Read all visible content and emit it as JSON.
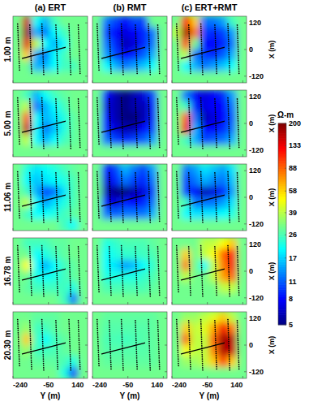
{
  "chart_data": {
    "type": "heatmap",
    "column_titles": [
      "(a) ERT",
      "(b) RMT",
      "(c) ERT+RMT"
    ],
    "row_labels": [
      "1.00 m",
      "5.00 m",
      "11.06 m",
      "16.78 m",
      "20.30 m"
    ],
    "x_label": "Y (m)",
    "y_label": "X (m)",
    "xlim": [
      -240,
      160
    ],
    "xticks": [
      -240,
      -50,
      140
    ],
    "ylim": [
      -150,
      150
    ],
    "yticks": [
      120,
      0,
      -120
    ],
    "log": true,
    "cell_x_edges": [
      -240,
      -190,
      -140,
      -90,
      -40,
      10,
      60,
      110,
      160
    ],
    "cell_y_edges": [
      150,
      100,
      50,
      0,
      -50,
      -100,
      -150
    ],
    "colorbar": {
      "label": "Ω-m",
      "lim": [
        5,
        200
      ],
      "ticks": [
        200,
        133,
        88,
        58,
        39,
        26,
        17,
        11,
        8,
        5
      ]
    },
    "profiles": [
      {
        "y": [
          -215,
          -205
        ],
        "x": [
          115,
          -95
        ],
        "line_style": "dotted"
      },
      {
        "y": [
          -150,
          -140
        ],
        "x": [
          110,
          -110
        ],
        "line_style": "dotted"
      },
      {
        "y": [
          -85,
          -75
        ],
        "x": [
          115,
          -115
        ],
        "line_style": "dotted"
      },
      {
        "y": [
          -10,
          0
        ],
        "x": [
          110,
          -115
        ],
        "line_style": "dotted"
      },
      {
        "y": [
          60,
          70
        ],
        "x": [
          115,
          -120
        ],
        "line_style": "dotted"
      },
      {
        "y": [
          110,
          120
        ],
        "x": [
          110,
          -115
        ],
        "line_style": "dotted"
      },
      {
        "y": [
          -190,
          40
        ],
        "x": [
          -40,
          10
        ],
        "line_style": "solid"
      }
    ],
    "panels": [
      [
        [
          [
            30,
            150,
            20,
            15,
            25,
            30,
            30,
            30
          ],
          [
            30,
            180,
            15,
            12,
            20,
            25,
            30,
            30
          ],
          [
            30,
            140,
            40,
            20,
            15,
            20,
            30,
            30
          ],
          [
            30,
            60,
            15,
            12,
            20,
            25,
            30,
            30
          ],
          [
            30,
            30,
            15,
            15,
            20,
            25,
            25,
            30
          ],
          [
            30,
            30,
            30,
            30,
            30,
            30,
            30,
            30
          ]
        ],
        [
          [
            30,
            12,
            10,
            8,
            10,
            10,
            30,
            30
          ],
          [
            30,
            10,
            8,
            7,
            8,
            9,
            12,
            30
          ],
          [
            30,
            12,
            9,
            6,
            7,
            9,
            12,
            30
          ],
          [
            30,
            14,
            10,
            8,
            9,
            11,
            15,
            30
          ],
          [
            30,
            20,
            15,
            12,
            14,
            16,
            20,
            30
          ],
          [
            30,
            30,
            30,
            30,
            30,
            30,
            30,
            30
          ]
        ],
        [
          [
            30,
            120,
            60,
            12,
            12,
            14,
            25,
            30
          ],
          [
            40,
            180,
            80,
            10,
            9,
            10,
            14,
            30
          ],
          [
            30,
            100,
            30,
            8,
            8,
            9,
            12,
            30
          ],
          [
            30,
            40,
            12,
            10,
            9,
            11,
            15,
            30
          ],
          [
            30,
            20,
            15,
            12,
            14,
            16,
            20,
            30
          ],
          [
            30,
            30,
            30,
            30,
            30,
            30,
            30,
            30
          ]
        ]
      ],
      [
        [
          [
            30,
            25,
            15,
            20,
            25,
            28,
            30,
            30
          ],
          [
            30,
            40,
            12,
            15,
            20,
            25,
            30,
            30
          ],
          [
            30,
            90,
            20,
            15,
            18,
            22,
            28,
            30
          ],
          [
            30,
            150,
            20,
            12,
            16,
            22,
            28,
            30
          ],
          [
            30,
            40,
            20,
            15,
            20,
            25,
            28,
            30
          ],
          [
            30,
            30,
            30,
            30,
            30,
            30,
            30,
            30
          ]
        ],
        [
          [
            30,
            8,
            6,
            5,
            6,
            7,
            10,
            30
          ],
          [
            30,
            7,
            6,
            5,
            6,
            6,
            9,
            30
          ],
          [
            30,
            8,
            6,
            5,
            5,
            6,
            9,
            30
          ],
          [
            30,
            9,
            7,
            6,
            6,
            8,
            10,
            30
          ],
          [
            30,
            12,
            10,
            9,
            10,
            11,
            14,
            30
          ],
          [
            30,
            30,
            30,
            30,
            30,
            30,
            30,
            30
          ]
        ],
        [
          [
            30,
            12,
            8,
            7,
            8,
            9,
            14,
            30
          ],
          [
            30,
            25,
            9,
            7,
            8,
            8,
            12,
            30
          ],
          [
            30,
            90,
            12,
            6,
            7,
            8,
            11,
            30
          ],
          [
            30,
            130,
            15,
            8,
            8,
            9,
            12,
            30
          ],
          [
            30,
            25,
            15,
            10,
            11,
            12,
            15,
            30
          ],
          [
            30,
            30,
            30,
            30,
            30,
            30,
            30,
            30
          ]
        ]
      ],
      [
        [
          [
            30,
            22,
            18,
            20,
            22,
            25,
            28,
            30
          ],
          [
            30,
            20,
            16,
            18,
            20,
            22,
            26,
            30
          ],
          [
            30,
            25,
            15,
            10,
            12,
            18,
            26,
            30
          ],
          [
            30,
            40,
            20,
            14,
            18,
            22,
            26,
            30
          ],
          [
            30,
            25,
            20,
            20,
            22,
            25,
            28,
            30
          ],
          [
            30,
            30,
            30,
            30,
            30,
            25,
            20,
            30
          ]
        ],
        [
          [
            30,
            8,
            10,
            15,
            12,
            10,
            14,
            30
          ],
          [
            30,
            7,
            9,
            12,
            10,
            9,
            12,
            30
          ],
          [
            30,
            6,
            5,
            5,
            6,
            7,
            10,
            30
          ],
          [
            30,
            8,
            7,
            9,
            8,
            9,
            12,
            30
          ],
          [
            30,
            12,
            11,
            12,
            12,
            12,
            15,
            30
          ],
          [
            30,
            30,
            30,
            30,
            30,
            30,
            30,
            30
          ]
        ],
        [
          [
            30,
            12,
            14,
            18,
            16,
            14,
            18,
            30
          ],
          [
            30,
            10,
            12,
            15,
            13,
            12,
            16,
            30
          ],
          [
            30,
            10,
            8,
            6,
            7,
            9,
            14,
            30
          ],
          [
            30,
            25,
            12,
            12,
            12,
            14,
            18,
            30
          ],
          [
            30,
            20,
            18,
            18,
            18,
            20,
            22,
            30
          ],
          [
            30,
            30,
            30,
            30,
            30,
            30,
            30,
            30
          ]
        ]
      ],
      [
        [
          [
            30,
            25,
            25,
            25,
            28,
            28,
            30,
            30
          ],
          [
            30,
            30,
            20,
            22,
            25,
            28,
            30,
            30
          ],
          [
            30,
            50,
            20,
            15,
            20,
            25,
            28,
            30
          ],
          [
            30,
            30,
            22,
            20,
            22,
            25,
            28,
            30
          ],
          [
            30,
            28,
            25,
            25,
            25,
            25,
            22,
            30
          ],
          [
            30,
            30,
            30,
            30,
            30,
            25,
            12,
            30
          ]
        ],
        [
          [
            30,
            22,
            24,
            26,
            26,
            26,
            28,
            30
          ],
          [
            30,
            20,
            22,
            24,
            24,
            25,
            26,
            30
          ],
          [
            30,
            20,
            18,
            14,
            16,
            20,
            24,
            30
          ],
          [
            30,
            22,
            22,
            22,
            22,
            24,
            26,
            30
          ],
          [
            30,
            26,
            26,
            26,
            26,
            26,
            28,
            30
          ],
          [
            30,
            30,
            30,
            30,
            30,
            30,
            30,
            30
          ]
        ],
        [
          [
            30,
            30,
            30,
            40,
            40,
            50,
            60,
            30
          ],
          [
            30,
            60,
            30,
            40,
            50,
            90,
            120,
            30
          ],
          [
            30,
            80,
            30,
            20,
            40,
            80,
            130,
            30
          ],
          [
            30,
            40,
            30,
            30,
            40,
            70,
            90,
            30
          ],
          [
            30,
            30,
            30,
            30,
            30,
            40,
            40,
            30
          ],
          [
            30,
            30,
            30,
            30,
            30,
            30,
            30,
            30
          ]
        ]
      ],
      [
        [
          [
            30,
            30,
            28,
            28,
            28,
            30,
            30,
            30
          ],
          [
            30,
            35,
            25,
            25,
            28,
            30,
            30,
            30
          ],
          [
            30,
            60,
            25,
            20,
            25,
            28,
            30,
            30
          ],
          [
            30,
            35,
            25,
            25,
            26,
            28,
            30,
            30
          ],
          [
            30,
            30,
            28,
            28,
            28,
            26,
            22,
            30
          ],
          [
            30,
            30,
            30,
            30,
            30,
            22,
            10,
            30
          ]
        ],
        [
          [
            30,
            28,
            28,
            28,
            28,
            28,
            28,
            30
          ],
          [
            30,
            27,
            27,
            27,
            27,
            27,
            28,
            30
          ],
          [
            30,
            26,
            26,
            25,
            26,
            27,
            28,
            30
          ],
          [
            30,
            27,
            27,
            27,
            27,
            27,
            28,
            30
          ],
          [
            30,
            28,
            28,
            28,
            28,
            28,
            28,
            30
          ],
          [
            30,
            30,
            30,
            30,
            30,
            30,
            30,
            30
          ]
        ],
        [
          [
            30,
            35,
            35,
            40,
            45,
            60,
            40,
            30
          ],
          [
            30,
            60,
            40,
            45,
            70,
            130,
            80,
            30
          ],
          [
            30,
            90,
            40,
            40,
            90,
            180,
            160,
            30
          ],
          [
            30,
            50,
            40,
            40,
            80,
            170,
            150,
            30
          ],
          [
            30,
            35,
            35,
            40,
            60,
            100,
            60,
            30
          ],
          [
            30,
            30,
            30,
            30,
            30,
            30,
            30,
            30
          ]
        ]
      ]
    ]
  }
}
